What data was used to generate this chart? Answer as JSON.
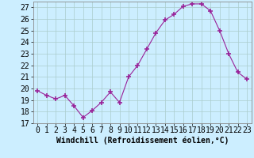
{
  "x": [
    0,
    1,
    2,
    3,
    4,
    5,
    6,
    7,
    8,
    9,
    10,
    11,
    12,
    13,
    14,
    15,
    16,
    17,
    18,
    19,
    20,
    21,
    22,
    23
  ],
  "y": [
    19.8,
    19.4,
    19.1,
    19.4,
    18.5,
    17.5,
    18.1,
    18.8,
    19.7,
    18.8,
    21.0,
    22.0,
    23.4,
    24.8,
    25.9,
    26.4,
    27.1,
    27.3,
    27.3,
    26.7,
    25.0,
    23.0,
    21.4,
    20.8
  ],
  "line_color": "#992299",
  "marker": "+",
  "marker_size": 4,
  "marker_lw": 1.2,
  "bg_color": "#cceeff",
  "grid_color": "#aacccc",
  "xlabel": "Windchill (Refroidissement éolien,°C)",
  "xlabel_fontsize": 7,
  "tick_label_fontsize": 7,
  "ylim": [
    17,
    27.5
  ],
  "xlim": [
    -0.5,
    23.5
  ],
  "yticks": [
    17,
    18,
    19,
    20,
    21,
    22,
    23,
    24,
    25,
    26,
    27
  ],
  "xticks": [
    0,
    1,
    2,
    3,
    4,
    5,
    6,
    7,
    8,
    9,
    10,
    11,
    12,
    13,
    14,
    15,
    16,
    17,
    18,
    19,
    20,
    21,
    22,
    23
  ]
}
